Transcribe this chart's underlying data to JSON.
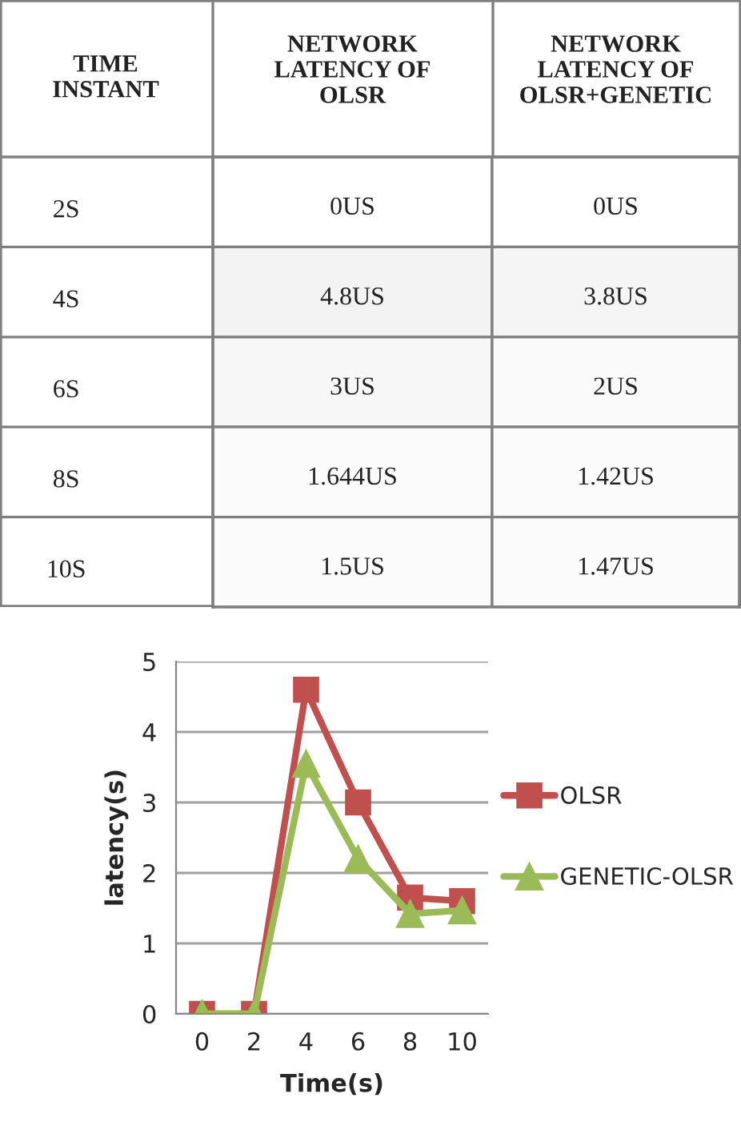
{
  "chart_data": [
    {
      "type": "heatmap",
      "ylabel": "TIME\nINSTANT",
      "categories": [
        "NETWORK\nLATENCY OF\nOLSR",
        "NETWORK\nLATENCY OF\nOLSR+GENETIC"
      ],
      "y_categories": [
        "2S",
        "4S",
        "6S",
        "8S",
        "10S"
      ],
      "cells": [
        [
          0,
          0
        ],
        [
          4.8,
          3.8
        ],
        [
          3,
          2
        ],
        [
          1.644,
          1.42
        ],
        [
          1.5,
          1.47
        ]
      ],
      "cell_labels": [
        [
          "0US",
          "0US"
        ],
        [
          "4.8US",
          "3.8US"
        ],
        [
          "3US",
          "2US"
        ],
        [
          "1.644US",
          "1.42US"
        ],
        [
          "1.5US",
          "1.47US"
        ]
      ]
    },
    {
      "type": "line",
      "xlabel": "Time(s)",
      "ylabel": "latency(s)",
      "categories": [
        "0",
        "2",
        "4",
        "6",
        "8",
        "10"
      ],
      "series": [
        {
          "name": "OLSR",
          "color": "#c0504d",
          "marker": "square",
          "values": [
            0,
            0,
            4.6,
            3,
            1.65,
            1.6
          ]
        },
        {
          "name": "GENETIC-OLSR",
          "color": "#9bbb59",
          "marker": "triangle",
          "values": [
            0,
            0,
            3.55,
            2.2,
            1.42,
            1.47
          ]
        }
      ],
      "ylim": [
        0,
        5
      ],
      "yticks": [
        0,
        1,
        2,
        3,
        4,
        5
      ],
      "grid": "y",
      "legend": "right"
    }
  ]
}
